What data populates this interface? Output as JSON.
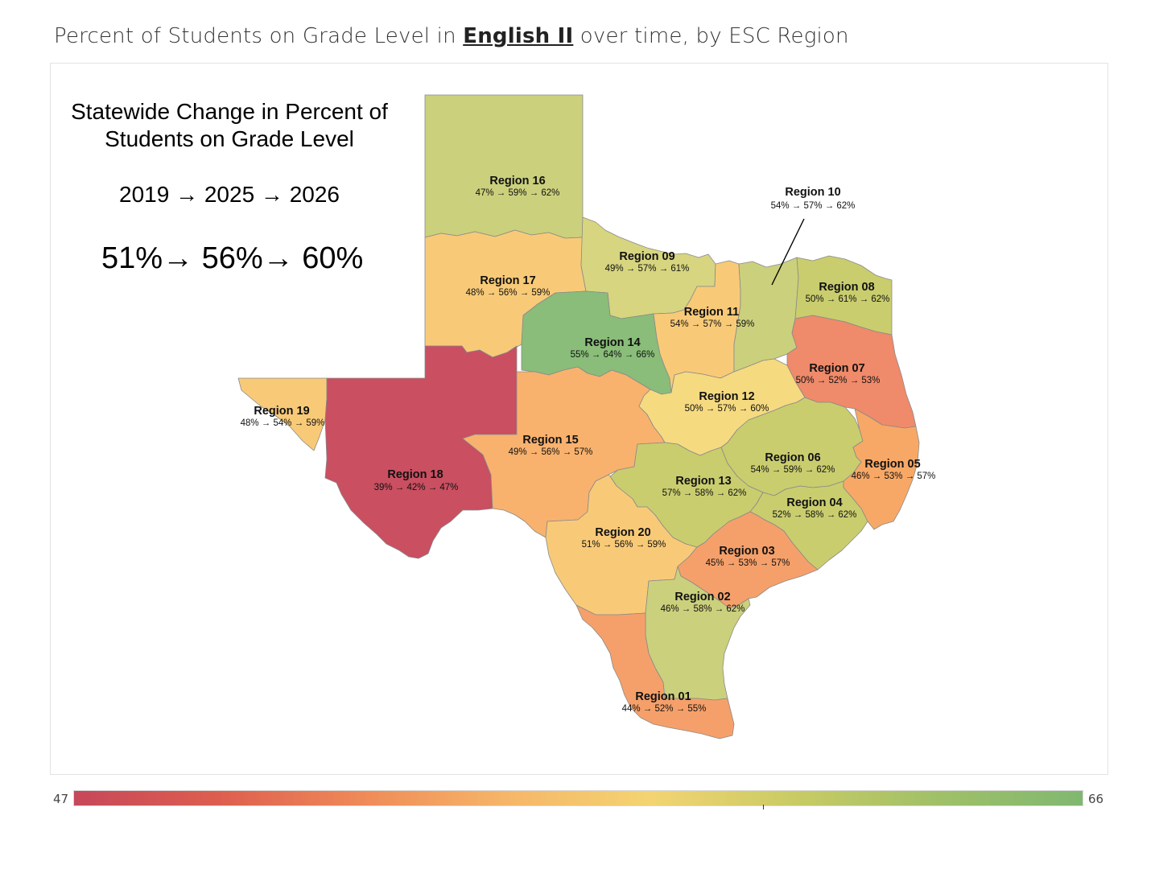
{
  "title": {
    "prefix": "Percent of Students on Grade Level in ",
    "subject": "English II",
    "suffix": " over time, by ESC Region"
  },
  "summary": {
    "heading": "Statewide Change in Percent of Students on Grade Level",
    "years": "2019 → 2025 → 2026",
    "values": "51%→  56%→ 60%"
  },
  "legend": {
    "min": "47",
    "max": "66",
    "colors": [
      "#c6485a",
      "#dd5e4f",
      "#ef8a58",
      "#f6b668",
      "#f3d472",
      "#c9cb64",
      "#a0c068",
      "#80b870"
    ]
  },
  "regions": [
    {
      "id": "r16",
      "name": "Region 16",
      "values": "47% → 59% → 62%",
      "color": "#cbd07c"
    },
    {
      "id": "r17",
      "name": "Region 17",
      "values": "48% → 56% → 59%",
      "color": "#f8ca78"
    },
    {
      "id": "r09",
      "name": "Region 09",
      "values": "49% → 57% → 61%",
      "color": "#d7d57f"
    },
    {
      "id": "r10",
      "name": "Region 10",
      "values": "54% → 57% → 62%",
      "color": "#cbd07c"
    },
    {
      "id": "r08",
      "name": "Region 08",
      "values": "50% → 61% → 62%",
      "color": "#c9cd6e"
    },
    {
      "id": "r11",
      "name": "Region 11",
      "values": "54% → 57% → 59%",
      "color": "#f8ca78"
    },
    {
      "id": "r14",
      "name": "Region 14",
      "values": "55% → 64% → 66%",
      "color": "#89bd79"
    },
    {
      "id": "r07",
      "name": "Region 07",
      "values": "50% → 52% → 53%",
      "color": "#ef8a6a"
    },
    {
      "id": "r19",
      "name": "Region 19",
      "values": "48% → 54% → 59%",
      "color": "#f8ca78"
    },
    {
      "id": "r18",
      "name": "Region 18",
      "values": "39% → 42% → 47%",
      "color": "#c94f61"
    },
    {
      "id": "r12",
      "name": "Region 12",
      "values": "50% → 57% → 60%",
      "color": "#f6da80"
    },
    {
      "id": "r15",
      "name": "Region 15",
      "values": "49% → 56% → 57%",
      "color": "#f8b26e"
    },
    {
      "id": "r06",
      "name": "Region 06",
      "values": "54% → 59% → 62%",
      "color": "#c9cd6e"
    },
    {
      "id": "r05",
      "name": "Region 05",
      "values": "46% → 53% → 57%",
      "color": "#f8a866"
    },
    {
      "id": "r13",
      "name": "Region 13",
      "values": "57% → 58% → 62%",
      "color": "#c9cd6e"
    },
    {
      "id": "r04",
      "name": "Region 04",
      "values": "52% → 58% → 62%",
      "color": "#c9cd6e"
    },
    {
      "id": "r20",
      "name": "Region 20",
      "values": "51% → 56% → 59%",
      "color": "#f8ca78"
    },
    {
      "id": "r03",
      "name": "Region 03",
      "values": "45% → 53% → 57%",
      "color": "#f5a06a"
    },
    {
      "id": "r02",
      "name": "Region 02",
      "values": "46% → 58% → 62%",
      "color": "#cbd07c"
    },
    {
      "id": "r01",
      "name": "Region 01",
      "values": "44% → 52% → 55%",
      "color": "#f5a06a"
    }
  ]
}
